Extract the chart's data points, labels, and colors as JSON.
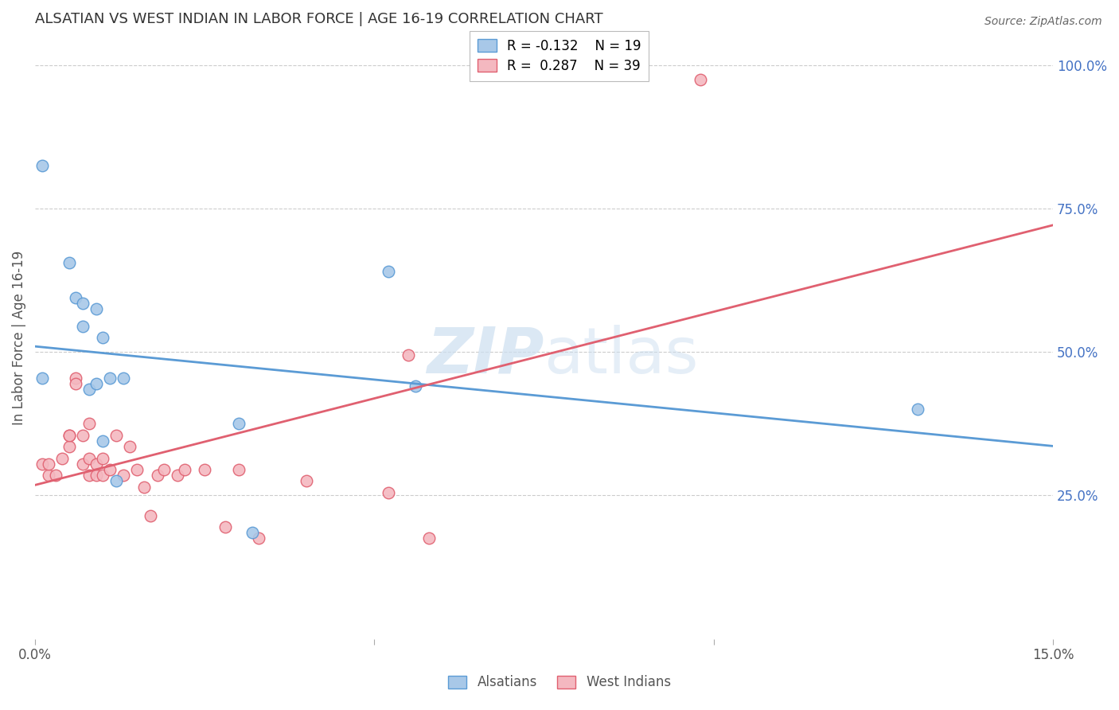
{
  "title": "ALSATIAN VS WEST INDIAN IN LABOR FORCE | AGE 16-19 CORRELATION CHART",
  "source": "Source: ZipAtlas.com",
  "ylabel": "In Labor Force | Age 16-19",
  "xlim": [
    0.0,
    0.15
  ],
  "ylim": [
    0.0,
    1.05
  ],
  "ytick_labels_right": [
    "25.0%",
    "50.0%",
    "75.0%",
    "100.0%"
  ],
  "ytick_vals_right": [
    0.25,
    0.5,
    0.75,
    1.0
  ],
  "alsatian_R": -0.132,
  "alsatian_N": 19,
  "westindian_R": 0.287,
  "westindian_N": 39,
  "alsatian_color": "#a8c8e8",
  "westindian_color": "#f4b8c0",
  "alsatian_edge_color": "#5b9bd5",
  "westindian_edge_color": "#e06070",
  "alsatian_line_color": "#5b9bd5",
  "westindian_line_color": "#e06070",
  "alsatian_x": [
    0.001,
    0.005,
    0.006,
    0.007,
    0.007,
    0.008,
    0.009,
    0.009,
    0.01,
    0.01,
    0.011,
    0.012,
    0.013,
    0.03,
    0.032,
    0.052,
    0.056,
    0.13,
    0.001
  ],
  "alsatian_y": [
    0.455,
    0.655,
    0.595,
    0.585,
    0.545,
    0.435,
    0.445,
    0.575,
    0.525,
    0.345,
    0.455,
    0.275,
    0.455,
    0.375,
    0.185,
    0.64,
    0.44,
    0.4,
    0.825
  ],
  "westindian_x": [
    0.001,
    0.002,
    0.002,
    0.003,
    0.004,
    0.005,
    0.005,
    0.005,
    0.006,
    0.006,
    0.007,
    0.007,
    0.008,
    0.008,
    0.008,
    0.009,
    0.009,
    0.01,
    0.01,
    0.011,
    0.012,
    0.013,
    0.014,
    0.015,
    0.016,
    0.017,
    0.018,
    0.019,
    0.021,
    0.022,
    0.025,
    0.028,
    0.03,
    0.033,
    0.04,
    0.052,
    0.055,
    0.058,
    0.098
  ],
  "westindian_y": [
    0.305,
    0.285,
    0.305,
    0.285,
    0.315,
    0.355,
    0.335,
    0.355,
    0.455,
    0.445,
    0.305,
    0.355,
    0.375,
    0.315,
    0.285,
    0.285,
    0.305,
    0.285,
    0.315,
    0.295,
    0.355,
    0.285,
    0.335,
    0.295,
    0.265,
    0.215,
    0.285,
    0.295,
    0.285,
    0.295,
    0.295,
    0.195,
    0.295,
    0.175,
    0.275,
    0.255,
    0.495,
    0.175,
    0.975
  ],
  "watermark": "ZIPatlas",
  "watermark_color": "#ccdff0"
}
